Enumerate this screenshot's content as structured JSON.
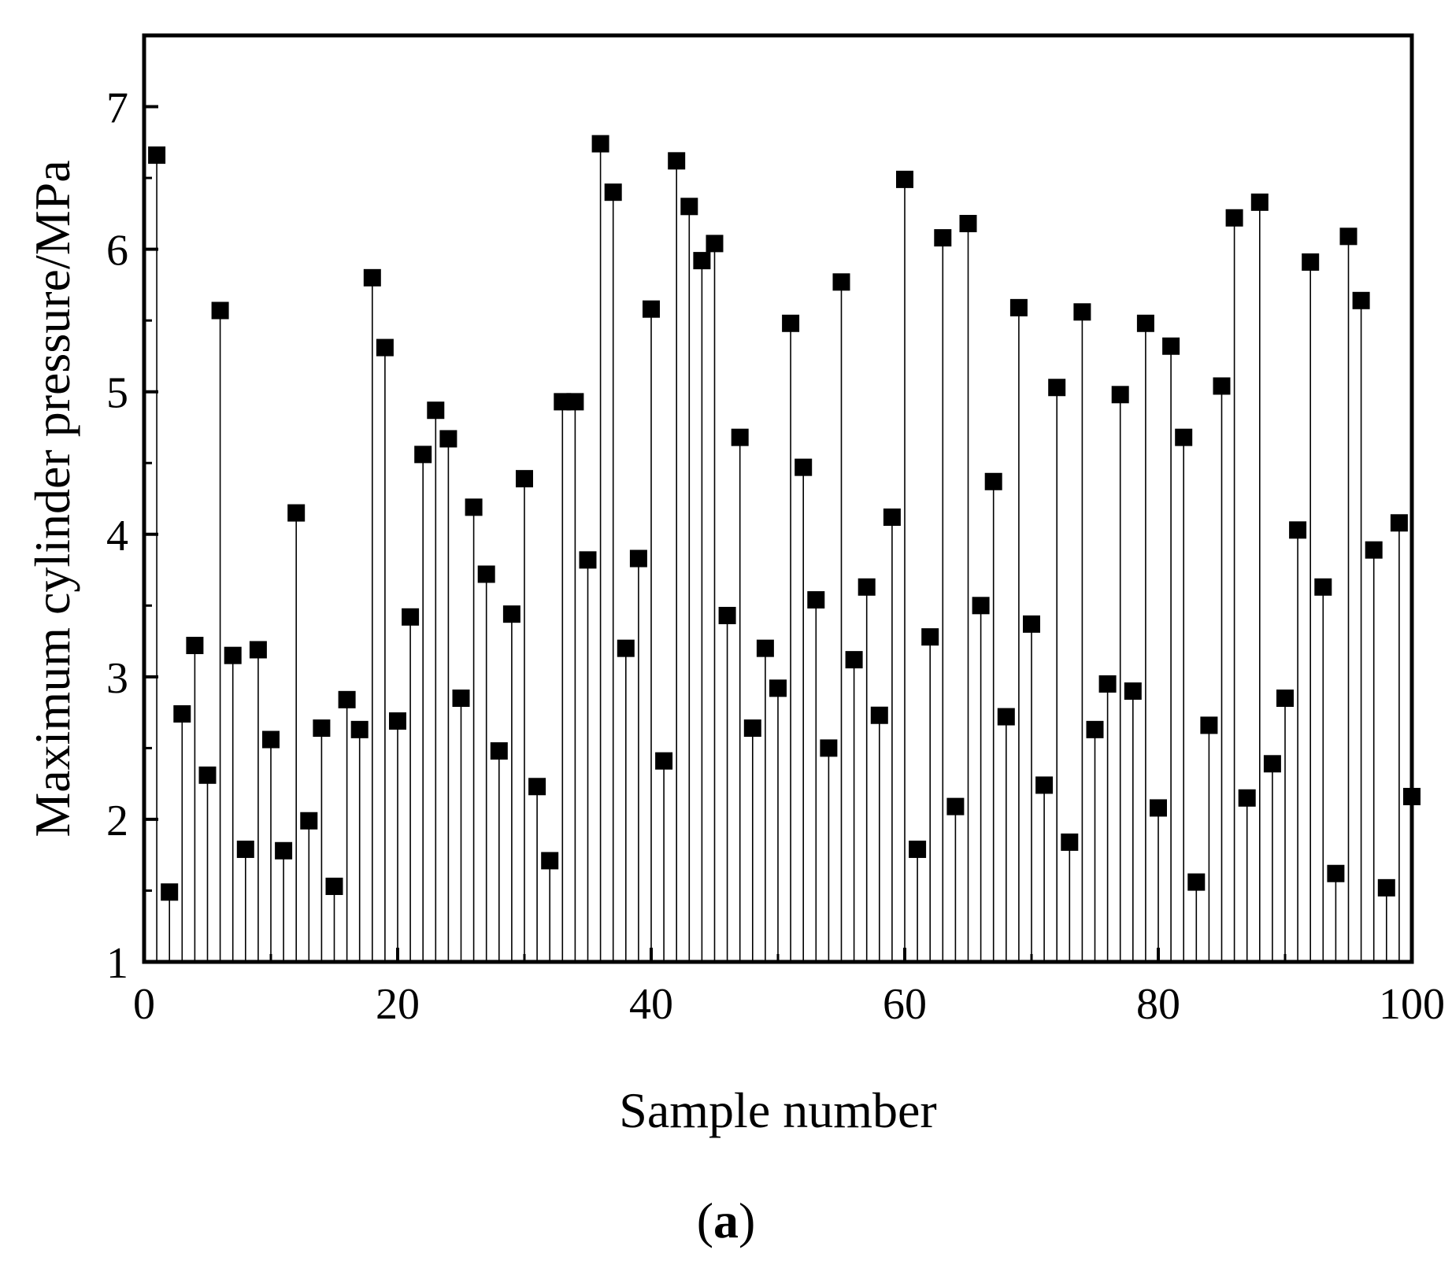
{
  "chart_data": {
    "type": "scatter",
    "style": "drop-lines with square markers",
    "title": "",
    "xlabel": "Sample number",
    "ylabel": "Maximum cylinder pressure/MPa",
    "xlim": [
      0,
      100
    ],
    "ylim": [
      1,
      7.5
    ],
    "xticks": [
      0,
      20,
      40,
      60,
      80,
      100
    ],
    "yticks": [
      1,
      2,
      3,
      4,
      5,
      6,
      7
    ],
    "grid": false,
    "legend": "none",
    "marker_color": "#000000",
    "x": [
      1,
      2,
      3,
      4,
      5,
      6,
      7,
      8,
      9,
      10,
      11,
      12,
      13,
      14,
      15,
      16,
      17,
      18,
      19,
      20,
      21,
      22,
      23,
      24,
      25,
      26,
      27,
      28,
      29,
      30,
      31,
      32,
      33,
      34,
      35,
      36,
      37,
      38,
      39,
      40,
      41,
      42,
      43,
      44,
      45,
      46,
      47,
      48,
      49,
      50,
      51,
      52,
      53,
      54,
      55,
      56,
      57,
      58,
      59,
      60,
      61,
      62,
      63,
      64,
      65,
      66,
      67,
      68,
      69,
      70,
      71,
      72,
      73,
      74,
      75,
      76,
      77,
      78,
      79,
      80,
      81,
      82,
      83,
      84,
      85,
      86,
      87,
      88,
      89,
      90,
      91,
      92,
      93,
      94,
      95,
      96,
      97,
      98,
      99,
      100
    ],
    "y": [
      6.66,
      1.49,
      2.74,
      3.22,
      2.31,
      5.57,
      3.15,
      1.79,
      3.19,
      2.56,
      1.78,
      4.15,
      1.99,
      2.64,
      1.53,
      2.84,
      2.63,
      5.8,
      5.31,
      2.69,
      3.42,
      4.56,
      4.87,
      4.67,
      2.85,
      4.19,
      3.72,
      2.48,
      3.44,
      4.39,
      2.23,
      1.71,
      4.93,
      4.93,
      3.82,
      6.74,
      6.4,
      3.2,
      3.83,
      5.58,
      2.41,
      6.62,
      6.3,
      5.92,
      6.04,
      3.43,
      4.68,
      2.64,
      3.2,
      2.92,
      5.48,
      4.47,
      3.54,
      2.5,
      5.77,
      3.12,
      3.63,
      2.73,
      4.12,
      6.49,
      1.79,
      3.28,
      6.08,
      2.09,
      6.18,
      3.5,
      4.37,
      2.72,
      5.59,
      3.37,
      2.24,
      5.03,
      1.84,
      5.56,
      2.63,
      2.95,
      4.98,
      2.9,
      5.48,
      2.08,
      5.32,
      4.68,
      1.56,
      2.66,
      5.04,
      6.22,
      2.15,
      6.33,
      2.39,
      2.85,
      4.03,
      5.91,
      3.63,
      1.62,
      6.09,
      5.64,
      3.89,
      1.52,
      4.08,
      2.16
    ]
  },
  "panel_label": {
    "open": "(",
    "letter": "a",
    "close": ")"
  }
}
